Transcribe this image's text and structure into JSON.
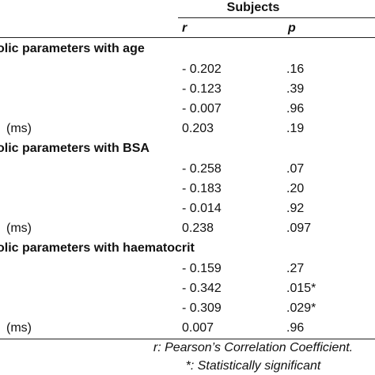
{
  "header": {
    "title": "Subjects",
    "columns": [
      "r",
      "p"
    ]
  },
  "sections": [
    {
      "title": "olic parameters with age",
      "rows": [
        {
          "r": "- 0.202",
          "p": ".16"
        },
        {
          "r": "- 0.123",
          "p": ".39"
        },
        {
          "r": "- 0.007",
          "p": ".96"
        },
        {
          "label": "(ms)",
          "r": "0.203",
          "p": ".19"
        }
      ]
    },
    {
      "title": "olic parameters with BSA",
      "rows": [
        {
          "r": "- 0.258",
          "p": ".07"
        },
        {
          "r": "- 0.183",
          "p": ".20"
        },
        {
          "r": "- 0.014",
          "p": ".92"
        },
        {
          "label": "(ms)",
          "r": "0.238",
          "p": ".097"
        }
      ]
    },
    {
      "title": "olic parameters with haematocrit",
      "rows": [
        {
          "r": "- 0.159",
          "p": ".27"
        },
        {
          "r": "- 0.342",
          "p": ".015*"
        },
        {
          "r": "- 0.309",
          "p": ".029*"
        },
        {
          "label": "(ms)",
          "r": "0.007",
          "p": ".96"
        }
      ]
    }
  ],
  "footnotes": [
    "r: Pearson’s Correlation Coefficient.",
    "*: Statistically significant"
  ]
}
